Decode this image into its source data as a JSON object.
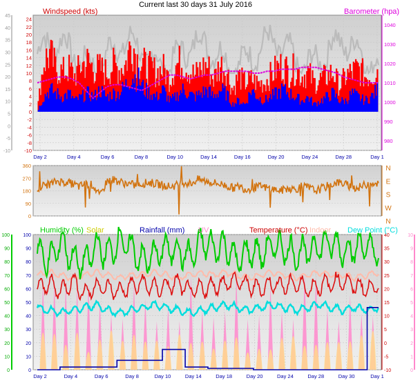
{
  "header": {
    "title": "Current last 30 days 31 July 2016",
    "wind_label": "Windspeed (kts)",
    "baro_label": "Barometer (hpa)"
  },
  "colors": {
    "wind_left_axis": "#000000",
    "wind_label": "#cc0000",
    "baro": "#dd00dd",
    "gust": "#ff0000",
    "wind_avg": "#0000ff",
    "baro_ghost": "#bbbbbb",
    "direction": "#d2730f",
    "humidity": "#00cc00",
    "solar": "#cccc00",
    "rainfall": "#0000aa",
    "uv": "#ff88cc",
    "temperature": "#dd1111",
    "indoor": "#ffbbaa",
    "dewpoint": "#00dddd",
    "plot_bg": "#e4e4e4",
    "plot_bg_top": "#d8d8d8"
  },
  "chart_data": [
    {
      "type": "line",
      "title": "Current last 30 days 31 July 2016",
      "ylabel": "Windspeed (kts)",
      "y2label": "Barometer (hpa)",
      "x_ticks": [
        "Day 2",
        "Day 4",
        "Day 6",
        "Day 8",
        "Day 10",
        "Day 14",
        "Day 16",
        "Day 20",
        "Day 24",
        "Day 28",
        "Day 1"
      ],
      "ylim": [
        -10,
        25
      ],
      "y_ticks": [
        -10,
        -8,
        -6,
        -4,
        -2,
        0,
        2,
        4,
        6,
        8,
        10,
        12,
        14,
        16,
        18,
        20,
        22,
        24
      ],
      "y_ticks_outer": [
        -10,
        -5,
        0,
        5,
        10,
        15,
        20,
        25,
        30,
        35,
        40,
        45
      ],
      "y2lim": [
        975,
        1045
      ],
      "y2_ticks": [
        980,
        990,
        1000,
        1010,
        1020,
        1030,
        1040
      ],
      "series": [
        {
          "name": "Gust",
          "values": [
            0,
            14,
            16,
            12,
            11,
            12,
            10,
            13,
            14,
            12,
            12,
            11,
            13,
            12,
            13,
            20,
            14,
            13,
            12,
            11,
            12,
            9,
            13,
            14,
            12,
            10,
            12,
            13,
            9,
            13,
            12,
            6,
            10,
            8,
            9,
            8,
            8,
            10,
            12,
            13,
            11,
            12,
            10,
            11,
            8,
            9,
            10,
            11,
            7,
            10,
            11,
            12,
            10,
            10,
            12
          ]
        },
        {
          "name": "Average",
          "values": [
            0,
            4,
            6,
            5,
            4,
            5,
            3,
            4,
            5,
            4,
            6,
            4,
            5,
            5,
            7,
            10,
            9,
            6,
            5,
            4,
            6,
            3,
            4,
            6,
            5,
            4,
            5,
            6,
            4,
            6,
            5,
            2,
            3,
            2,
            6,
            4,
            3,
            4,
            5,
            6,
            5,
            4,
            3,
            4,
            2,
            3,
            4,
            5,
            3,
            3,
            5,
            4,
            3,
            4,
            6
          ]
        },
        {
          "name": "Barometer",
          "values": [
            1010,
            1011,
            1012,
            1013,
            1013,
            1012,
            1010,
            1006,
            1002,
            1005,
            1008,
            1009,
            1009,
            1008,
            1007,
            1006,
            1008,
            1010,
            1012,
            1014,
            1014,
            1013,
            1012,
            1013,
            1014,
            1014,
            1015,
            1016,
            1016,
            1016,
            1016,
            1015,
            1015,
            1016,
            1016,
            1017,
            1017,
            1017,
            1018,
            1018,
            1018,
            1017,
            1016,
            1015,
            1013,
            1012,
            1011,
            1010,
            1010,
            1010
          ]
        }
      ]
    },
    {
      "type": "line",
      "ylabel": "Wind direction",
      "ylim": [
        0,
        360
      ],
      "y_ticks": [
        0,
        90,
        180,
        270,
        360
      ],
      "y2_ticks": [
        "N",
        "E",
        "S",
        "W",
        "N"
      ],
      "series": [
        {
          "name": "Direction",
          "values": [
            200,
            220,
            230,
            250,
            240,
            230,
            210,
            230,
            220,
            140,
            250,
            260,
            240,
            230,
            220,
            230,
            240,
            230,
            220,
            210,
            220,
            240,
            230,
            260,
            250,
            240,
            230,
            220,
            200,
            210,
            190,
            200,
            210,
            200,
            190,
            180,
            200,
            190,
            210,
            200,
            180,
            200,
            220,
            240,
            230,
            210,
            200,
            220,
            240,
            230
          ]
        }
      ]
    },
    {
      "type": "line",
      "x_ticks": [
        "Day 2",
        "Day 4",
        "Day 6",
        "Day 8",
        "Day 10",
        "Day 14",
        "Day 18",
        "Day 20",
        "Day 24",
        "Day 28",
        "Day 30",
        "Day 1"
      ],
      "legend": [
        "Humidity (%)",
        "Solar",
        "Rainfall (mm)",
        "UV",
        "Temperature (°C)",
        "Indoor",
        "Dew Point (°C)"
      ],
      "y_ticks_humidity": [
        0,
        10,
        20,
        30,
        40,
        50,
        60,
        70,
        80,
        90,
        100
      ],
      "y_ticks_rain": [
        0,
        5,
        10,
        15,
        20,
        25,
        30,
        35,
        40,
        45,
        50,
        55,
        60,
        65,
        70,
        75,
        80,
        85,
        90,
        95,
        100
      ],
      "y_ticks_temp": [
        -10,
        -5,
        0,
        5,
        10,
        15,
        20,
        25,
        30,
        35,
        40
      ],
      "y_ticks_uv": [
        0,
        1,
        2,
        3,
        4,
        5,
        6,
        7,
        8,
        9,
        10
      ],
      "series": [
        {
          "name": "Humidity (%)",
          "values": [
            88,
            80,
            95,
            82,
            78,
            92,
            85,
            96,
            90,
            80,
            85,
            90,
            88,
            83,
            95,
            90,
            92,
            80,
            88,
            85,
            92,
            90,
            85,
            88,
            92,
            94,
            88,
            90,
            92,
            85
          ]
        },
        {
          "name": "Temperature (°C)",
          "values": [
            20,
            22,
            19,
            23,
            18,
            21,
            20,
            19,
            21,
            22,
            20,
            21,
            22,
            19,
            20,
            21,
            22,
            23,
            21,
            20,
            22,
            21,
            22,
            20,
            21,
            22,
            23,
            21,
            20,
            21
          ]
        },
        {
          "name": "Indoor",
          "values": [
            25,
            26,
            25,
            24,
            25,
            26,
            25,
            24,
            25,
            25,
            26,
            25,
            24,
            25,
            26,
            25,
            26,
            25,
            24,
            25,
            26,
            25,
            24,
            25,
            26,
            25,
            25,
            24,
            25,
            26
          ]
        },
        {
          "name": "Dew Point (°C)",
          "values": [
            13,
            12,
            11,
            12,
            13,
            14,
            12,
            11,
            12,
            13,
            14,
            13,
            12,
            11,
            12,
            13,
            14,
            13,
            12,
            13,
            14,
            13,
            12,
            13,
            14,
            13,
            12,
            13,
            12,
            13
          ]
        },
        {
          "name": "Rainfall (mm)",
          "values": [
            0,
            0,
            2,
            2,
            2,
            2,
            2,
            7,
            7,
            7,
            7,
            15,
            15,
            2,
            2,
            1,
            1,
            1,
            1,
            0,
            0,
            0,
            0,
            0,
            0,
            0,
            0,
            0,
            0,
            46
          ]
        }
      ]
    }
  ]
}
